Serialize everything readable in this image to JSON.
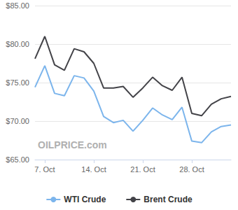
{
  "chart_data": {
    "type": "line",
    "categories": [
      null,
      "7. Oct",
      null,
      null,
      null,
      null,
      "14. Oct",
      null,
      null,
      null,
      null,
      "21. Oct",
      null,
      null,
      null,
      null,
      "28. Oct",
      null,
      null,
      null,
      null
    ],
    "series": [
      {
        "name": "WTI Crude",
        "color": "#7cb5ec",
        "values": [
          74.4,
          77.2,
          73.6,
          73.3,
          75.9,
          75.6,
          73.9,
          70.6,
          69.8,
          70.1,
          68.7,
          70.1,
          71.7,
          70.8,
          70.2,
          71.8,
          67.4,
          67.2,
          68.6,
          69.3,
          69.5
        ]
      },
      {
        "name": "Brent Crude",
        "color": "#434348",
        "values": [
          78.1,
          81.0,
          77.3,
          76.6,
          79.4,
          79.0,
          77.5,
          74.3,
          74.3,
          74.5,
          73.1,
          74.3,
          75.7,
          74.6,
          74.0,
          75.7,
          71.0,
          70.7,
          72.2,
          72.9,
          73.2
        ]
      }
    ],
    "ylim": [
      65,
      85
    ],
    "yticks": [
      {
        "value": 65,
        "label": "$65.00"
      },
      {
        "value": 70,
        "label": "$70.00"
      },
      {
        "value": 75,
        "label": "$75.00"
      },
      {
        "value": 80,
        "label": "$80.00"
      },
      {
        "value": 85,
        "label": "$85.00"
      }
    ],
    "grid": true,
    "legend": "bottom",
    "annotations": [
      "OILPRICE.com"
    ]
  }
}
